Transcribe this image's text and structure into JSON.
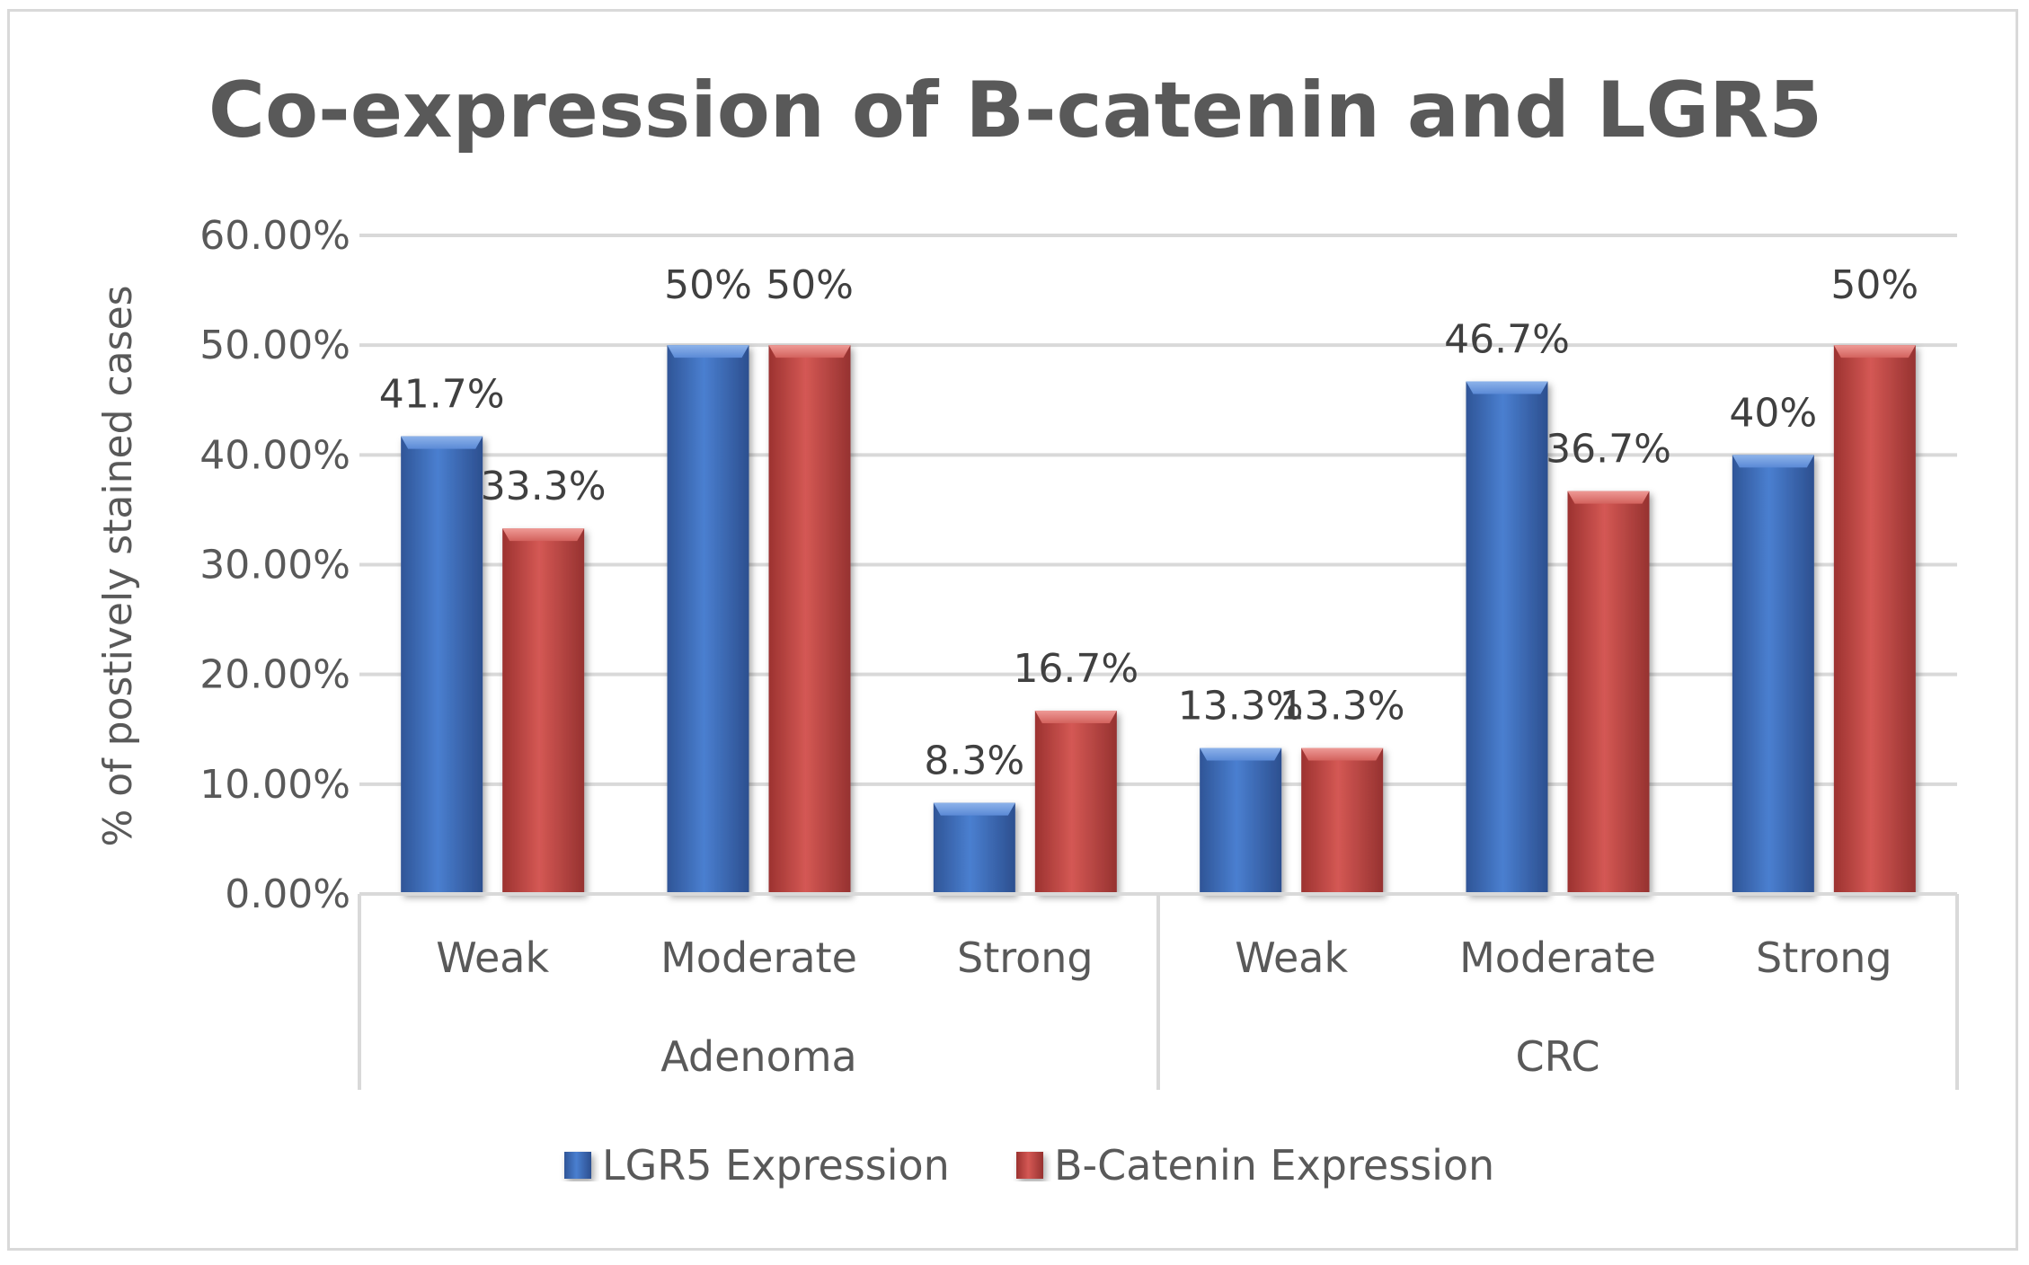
{
  "chart_data": {
    "type": "bar",
    "title": "Co-expression of B-catenin and LGR5",
    "xlabel": "",
    "ylabel": "% of postively stained cases",
    "ylim": [
      0,
      60
    ],
    "yticks": [
      0,
      10,
      20,
      30,
      40,
      50,
      60
    ],
    "ytick_labels": [
      "0.00%",
      "10.00%",
      "20.00%",
      "30.00%",
      "40.00%",
      "50.00%",
      "60.00%"
    ],
    "groups": [
      {
        "name": "Adenoma",
        "categories": [
          "Weak",
          "Moderate",
          "Strong"
        ]
      },
      {
        "name": "CRC",
        "categories": [
          "Weak",
          "Moderate",
          "Strong"
        ]
      }
    ],
    "series": [
      {
        "name": "LGR5 Expression",
        "color": "#4472c4",
        "values": [
          41.7,
          50,
          8.3,
          13.3,
          46.7,
          40
        ],
        "labels": [
          "41.7%",
          "50%",
          "8.3%",
          "13.3%",
          "46.7%",
          "40%"
        ]
      },
      {
        "name": "B-Catenin Expression",
        "color": "#c0504d",
        "values": [
          33.3,
          50,
          16.7,
          13.3,
          36.7,
          50
        ],
        "labels": [
          "33.3%",
          "50%",
          "16.7%",
          "13.3%",
          "36.7%",
          "50%"
        ]
      }
    ],
    "grid": true,
    "legend_position": "bottom"
  }
}
